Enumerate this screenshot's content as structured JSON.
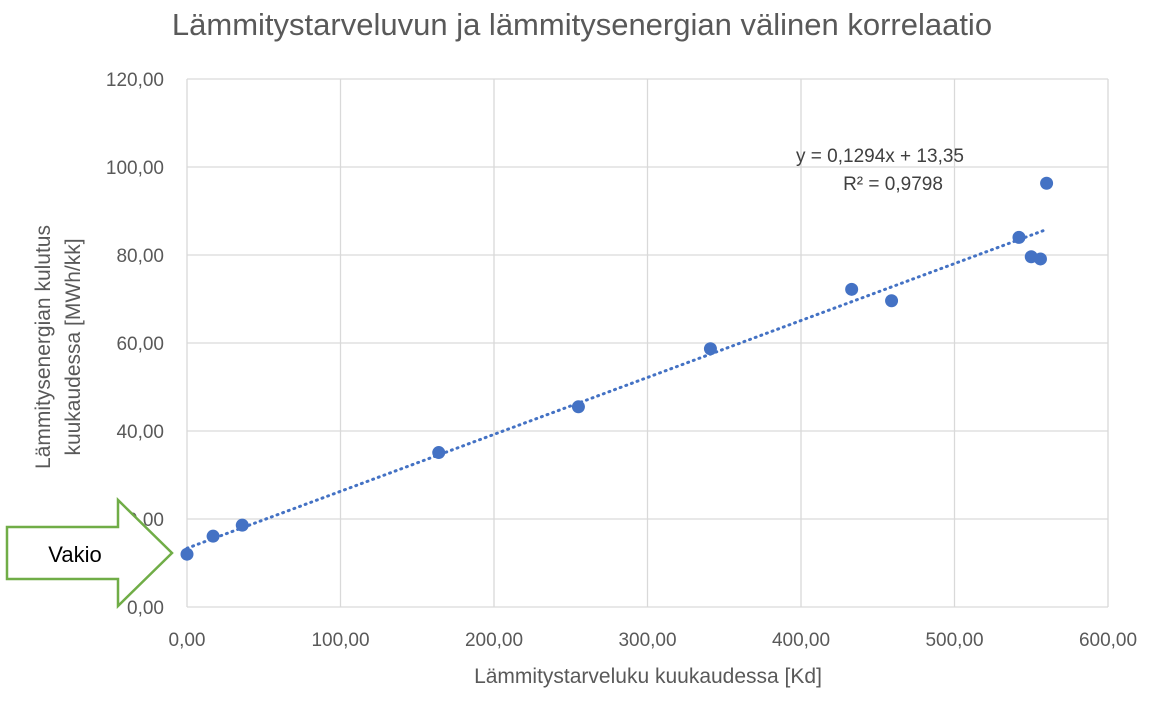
{
  "chart_data": {
    "type": "scatter",
    "title": "Lämmitystarveluvun ja lämmitysenergian välinen korrelaatio",
    "xlabel": "Lämmitystarveluku kuukaudessa [Kd]",
    "ylabel_lines": [
      "Lämmitysenergian kulutus",
      "kuukaudessa [MWh/kk]"
    ],
    "xlim": [
      0,
      600
    ],
    "ylim": [
      0,
      120
    ],
    "x_ticks": [
      0,
      100,
      200,
      300,
      400,
      500,
      600
    ],
    "y_ticks": [
      0,
      20,
      40,
      60,
      80,
      100,
      120
    ],
    "x_tick_labels": [
      "0,00",
      "100,00",
      "200,00",
      "300,00",
      "400,00",
      "500,00",
      "600,00"
    ],
    "y_tick_labels": [
      "0,00",
      "20,00",
      "40,00",
      "60,00",
      "80,00",
      "100,00",
      "120,00"
    ],
    "grid": true,
    "legend": "none",
    "series": [
      {
        "color": "#4472c4",
        "points": [
          {
            "x": 0,
            "y": 12.0
          },
          {
            "x": 17,
            "y": 16.1
          },
          {
            "x": 36,
            "y": 18.6
          },
          {
            "x": 164,
            "y": 35.1
          },
          {
            "x": 255,
            "y": 45.5
          },
          {
            "x": 341,
            "y": 58.7
          },
          {
            "x": 433,
            "y": 72.2
          },
          {
            "x": 459,
            "y": 69.6
          },
          {
            "x": 542,
            "y": 84.0
          },
          {
            "x": 550,
            "y": 79.6
          },
          {
            "x": 556,
            "y": 79.1
          },
          {
            "x": 560,
            "y": 96.3
          }
        ]
      }
    ],
    "trendline": {
      "type": "linear",
      "slope": 0.1294,
      "intercept": 13.35,
      "x_range": [
        0,
        560
      ],
      "style": "dotted",
      "color": "#4472c4",
      "equation_label": "y = 0,1294x + 13,35",
      "r2_label": "R² = 0,9798"
    },
    "annotation": {
      "text": "Vakio",
      "shape": "right-arrow",
      "outline_color": "#70ad47",
      "points_to": {
        "x": 0,
        "y": 13.35
      }
    }
  }
}
